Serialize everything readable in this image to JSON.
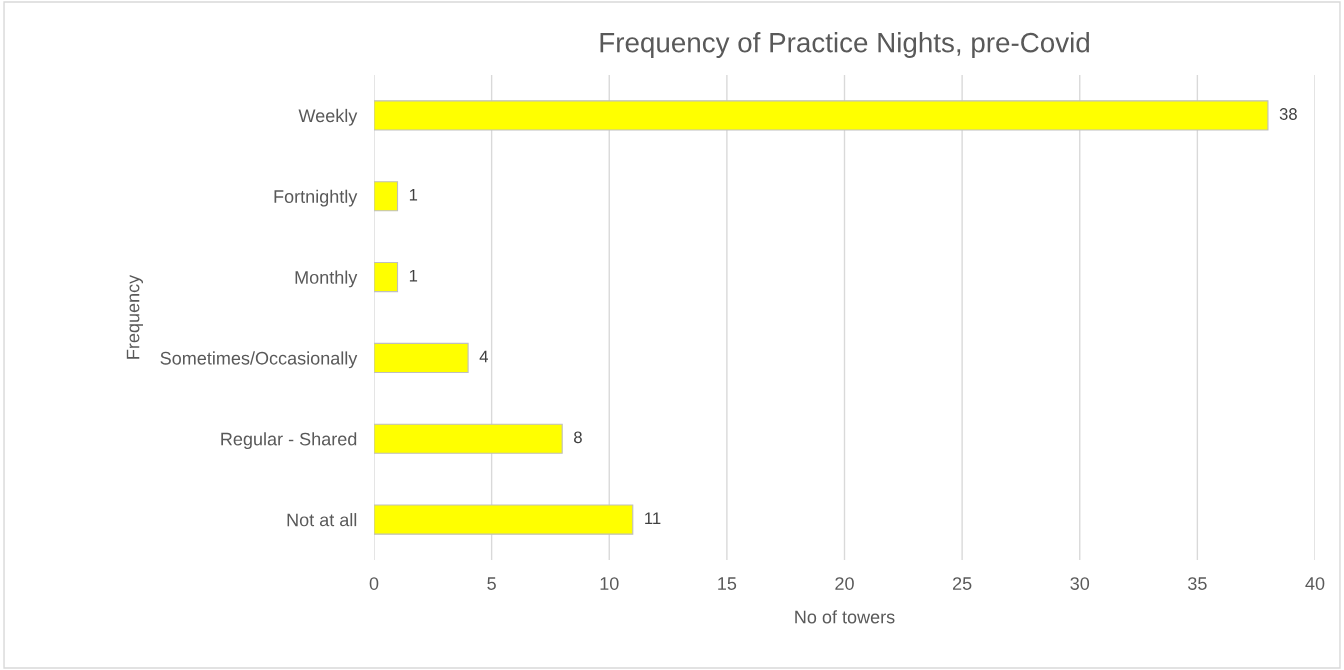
{
  "chart_data": {
    "type": "bar",
    "orientation": "horizontal",
    "title": "Frequency of Practice Nights, pre-Covid",
    "xlabel": "No of towers",
    "ylabel": "Frequency",
    "categories": [
      "Weekly",
      "Fortnightly",
      "Monthly",
      "Sometimes/Occasionally",
      "Regular - Shared",
      "Not at all"
    ],
    "values": [
      38,
      1,
      1,
      4,
      8,
      11
    ],
    "color": "#ffff00",
    "xlim": [
      0,
      40
    ],
    "xticks": [
      0,
      5,
      10,
      15,
      20,
      25,
      30,
      35,
      40
    ],
    "grid": "x",
    "data_labels": true
  }
}
